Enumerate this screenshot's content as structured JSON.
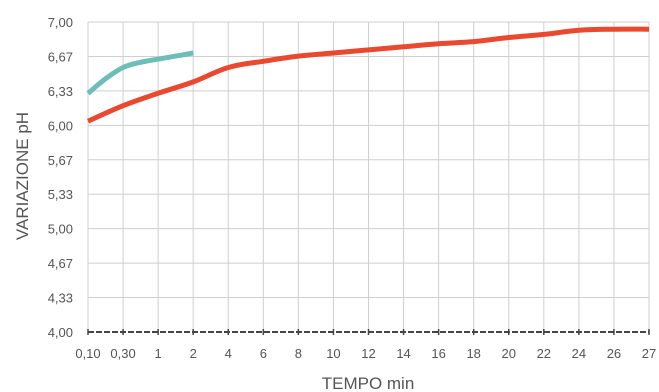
{
  "chart_data": {
    "type": "line",
    "title": "",
    "xlabel": "TEMPO min",
    "ylabel": "VARIAZIONE pH",
    "x_tick_labels": [
      "0,10",
      "0,30",
      "1",
      "2",
      "4",
      "6",
      "8",
      "10",
      "12",
      "14",
      "16",
      "18",
      "20",
      "22",
      "24",
      "26",
      "27"
    ],
    "y_tick_labels": [
      "4,00",
      "4,33",
      "4,67",
      "5,00",
      "5,33",
      "5,67",
      "6,00",
      "6,33",
      "6,67",
      "7,00"
    ],
    "ylim": [
      4.0,
      7.0
    ],
    "grid": true,
    "legend": "none",
    "series": [
      {
        "color": "#6dbdb9",
        "x_index": [
          0,
          0.5,
          1,
          1.5,
          2,
          2.5,
          3
        ],
        "values": [
          6.31,
          6.45,
          6.56,
          6.61,
          6.64,
          6.67,
          6.7
        ]
      },
      {
        "color": "#e8492f",
        "x_index": [
          0,
          1,
          2,
          3,
          4,
          5,
          6,
          7,
          8,
          9,
          10,
          11,
          12,
          13,
          14,
          15,
          16
        ],
        "values": [
          6.04,
          6.19,
          6.31,
          6.42,
          6.56,
          6.62,
          6.67,
          6.7,
          6.73,
          6.76,
          6.79,
          6.81,
          6.85,
          6.88,
          6.92,
          6.93,
          6.93
        ]
      }
    ]
  }
}
